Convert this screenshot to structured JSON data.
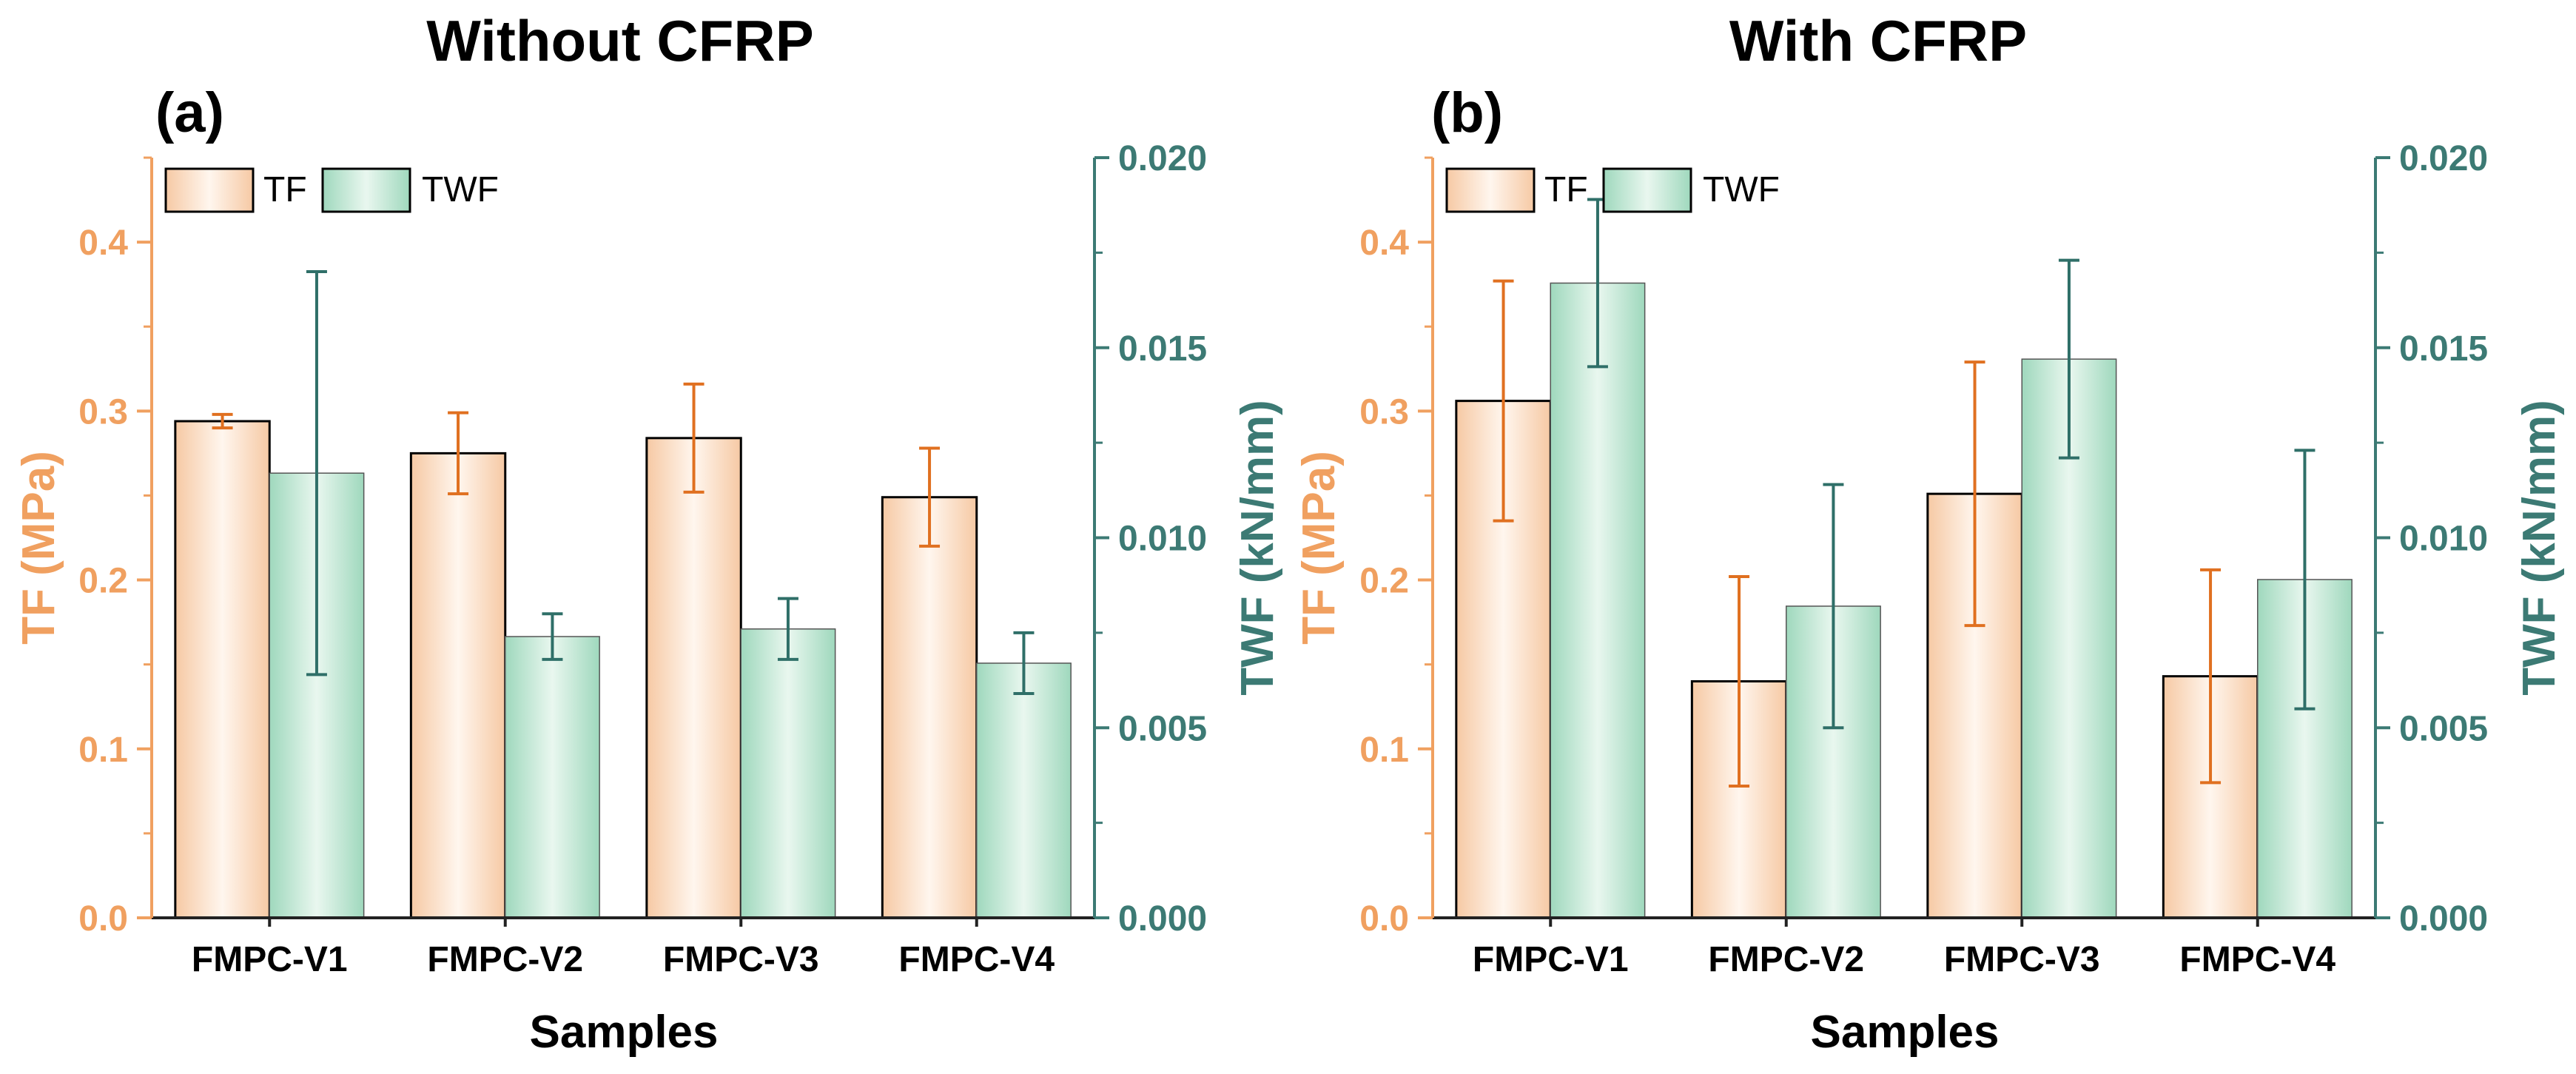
{
  "colors": {
    "tf": "#f0a060",
    "tf_dark": "#e07020",
    "twf": "#3c7a74",
    "twf_dark": "#2f6f68",
    "tf_bar_edge": "#f6c9a4",
    "tf_bar_center": "#fff6ee",
    "twf_bar_edge": "#9fd8bd",
    "twf_bar_center": "#e9f7ef",
    "axis": "#222222"
  },
  "chart_data": [
    {
      "type": "bar",
      "title": "Without CFRP",
      "panel_label": "(a)",
      "xlabel": "Samples",
      "ylabel_left": "TF (MPa)",
      "ylabel_right": "TWF (kN/mm)",
      "categories": [
        "FMPC-V1",
        "FMPC-V2",
        "FMPC-V3",
        "FMPC-V4"
      ],
      "ylim_left": [
        0,
        0.45
      ],
      "ylim_right": [
        0,
        0.02
      ],
      "yticks_left": [
        "0.0",
        "0.1",
        "0.2",
        "0.3",
        "0.4"
      ],
      "yticks_right": [
        "0.000",
        "0.005",
        "0.010",
        "0.015",
        "0.020"
      ],
      "legend": [
        "TF",
        "TWF"
      ],
      "series": [
        {
          "name": "TF",
          "axis": "left",
          "values": [
            0.294,
            0.275,
            0.284,
            0.249
          ],
          "errors": [
            0.004,
            0.024,
            0.032,
            0.029
          ]
        },
        {
          "name": "TWF",
          "axis": "right",
          "values": [
            0.0117,
            0.0074,
            0.0076,
            0.0067
          ],
          "errors": [
            0.0053,
            0.0006,
            0.0008,
            0.0008
          ]
        }
      ]
    },
    {
      "type": "bar",
      "title": "With CFRP",
      "panel_label": "(b)",
      "xlabel": "Samples",
      "ylabel_left": "TF (MPa)",
      "ylabel_right": "TWF (kN/mm)",
      "categories": [
        "FMPC-V1",
        "FMPC-V2",
        "FMPC-V3",
        "FMPC-V4"
      ],
      "ylim_left": [
        0,
        0.45
      ],
      "ylim_right": [
        0,
        0.02
      ],
      "yticks_left": [
        "0.0",
        "0.1",
        "0.2",
        "0.3",
        "0.4"
      ],
      "yticks_right": [
        "0.000",
        "0.005",
        "0.010",
        "0.015",
        "0.020"
      ],
      "legend": [
        "TF",
        "TWF"
      ],
      "series": [
        {
          "name": "TF",
          "axis": "left",
          "values": [
            0.306,
            0.14,
            0.251,
            0.143
          ],
          "errors": [
            0.071,
            0.062,
            0.078,
            0.063
          ]
        },
        {
          "name": "TWF",
          "axis": "right",
          "values": [
            0.0167,
            0.0082,
            0.0147,
            0.0089
          ],
          "errors": [
            0.0022,
            0.0032,
            0.0026,
            0.0034
          ]
        }
      ]
    }
  ]
}
